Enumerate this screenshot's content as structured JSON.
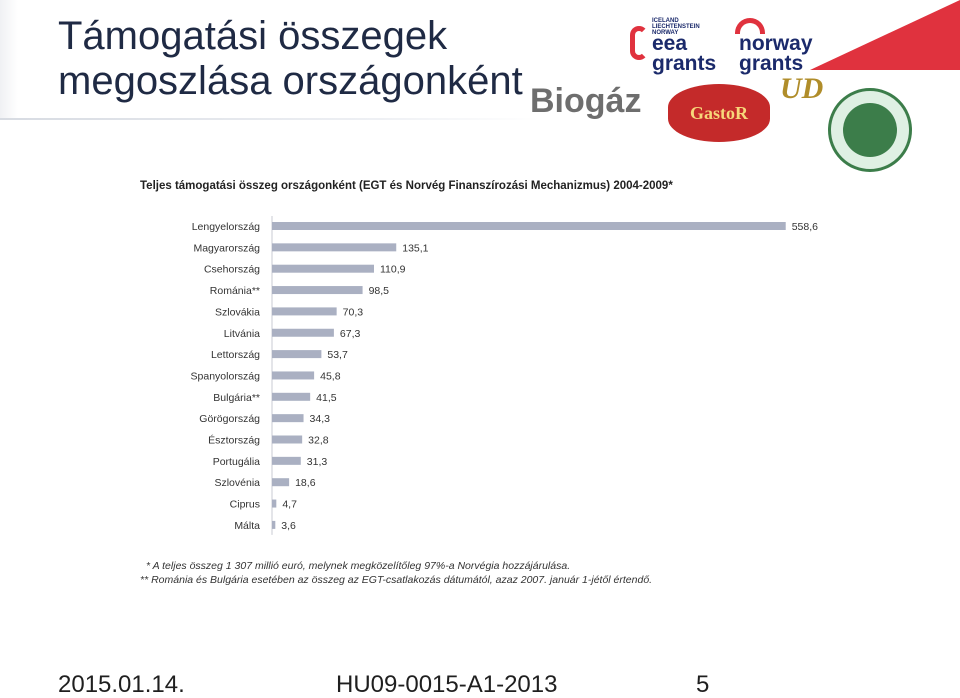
{
  "slide": {
    "title_line1": "Támogatási összegek",
    "title_line2": "megoszlása országonként"
  },
  "logos": {
    "eea_small_1": "ICELAND",
    "eea_small_2": "LIECHTENSTEIN",
    "eea_small_3": "NORWAY",
    "eea_big_1": "eea",
    "eea_big_2": "grants",
    "norway_big_1": "norway",
    "norway_big_2": "grants",
    "biogas": "Biogáz",
    "gastor": "GastoR",
    "ud": "UD",
    "accent_red": "#e0323e",
    "accent_navy": "#1b2a6b"
  },
  "chart_data": {
    "type": "bar",
    "orientation": "horizontal",
    "title": "Teljes támogatási összeg országonként (EGT és Norvég Finanszírozási Mechanizmus) 2004-2009*",
    "categories": [
      "Lengyelország",
      "Magyarország",
      "Csehország",
      "Románia**",
      "Szlovákia",
      "Litvánia",
      "Lettország",
      "Spanyolország",
      "Bulgária**",
      "Görögország",
      "Észtország",
      "Portugália",
      "Szlovénia",
      "Ciprus",
      "Málta"
    ],
    "values": [
      558.6,
      135.1,
      110.9,
      98.5,
      70.3,
      67.3,
      53.7,
      45.8,
      41.5,
      34.3,
      32.8,
      31.3,
      18.6,
      4.7,
      3.6
    ],
    "value_labels": [
      "558,6",
      "135,1",
      "110,9",
      "98,5",
      "70,3",
      "67,3",
      "53,7",
      "45,8",
      "41,5",
      "34,3",
      "32,8",
      "31,3",
      "18,6",
      "4,7",
      "3,6"
    ],
    "bar_color": "#aab0c2",
    "xlim": [
      0,
      560
    ],
    "grid": false
  },
  "notes": {
    "note1": "*  A teljes összeg 1 307 millió euró, melynek megközelítőleg 97%-a Norvégia hozzájárulása.",
    "note2": "** Románia és Bulgária esetében az összeg az EGT-csatlakozás dátumától, azaz 2007. január 1-jétől értendő."
  },
  "footer": {
    "date": "2015.01.14.",
    "code": "HU09-0015-A1-2013",
    "page": "5"
  }
}
